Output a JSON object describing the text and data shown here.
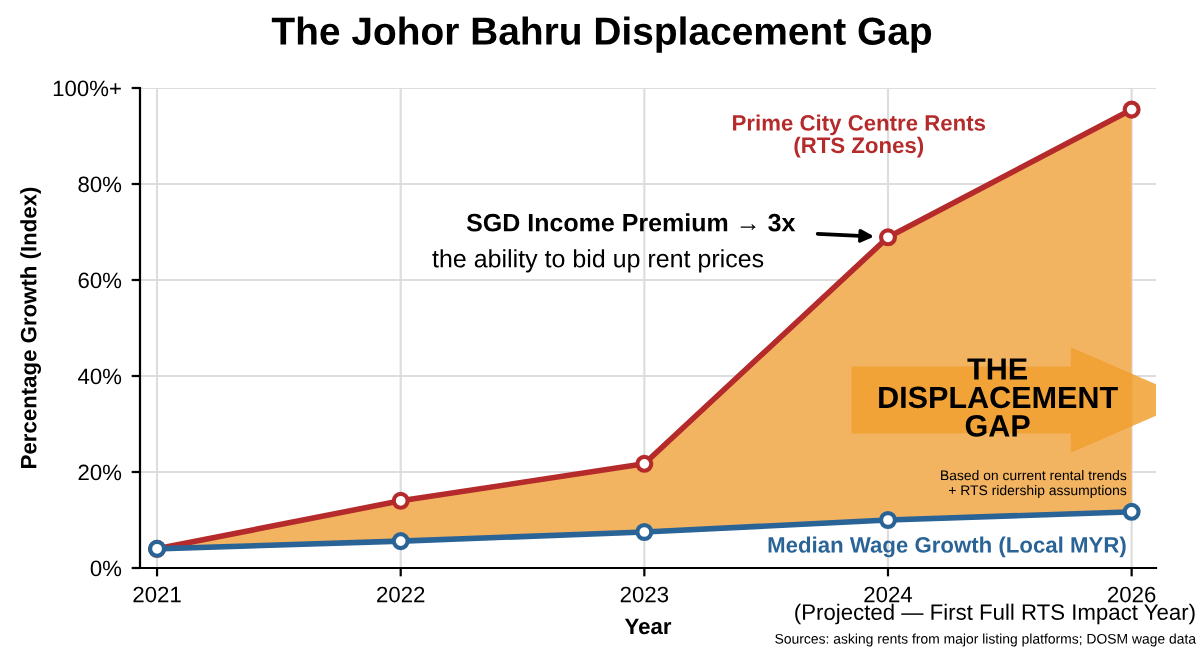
{
  "chart_data": {
    "type": "line",
    "title": "The Johor Bahru Displacement Gap",
    "xlabel": "Year",
    "ylabel": "Percentage Growth (Index)",
    "categories": [
      "2021",
      "2022",
      "2023",
      "2024",
      "2026"
    ],
    "series": [
      {
        "name": "Prime City Centre Rents\n(RTS Zones)",
        "color": "#b52a2a",
        "values": [
          4,
          14,
          21.7,
          68.9,
          95.5
        ],
        "lower": [
          4,
          5.6,
          7.5,
          10,
          11.7
        ],
        "upper": [
          4,
          14,
          21.7,
          68.9,
          95.5
        ]
      },
      {
        "name": "Median Wage Growth (Local MYR)",
        "color": "#2a6496",
        "values": [
          4,
          5.6,
          7.5,
          10,
          11.7
        ]
      }
    ],
    "ylim": [
      0,
      100
    ],
    "yticks": [
      {
        "value": 0,
        "label": "0%"
      },
      {
        "value": 20,
        "label": "20%"
      },
      {
        "value": 40,
        "label": "40%"
      },
      {
        "value": 60,
        "label": "60%"
      },
      {
        "value": 80,
        "label": "80%"
      },
      {
        "value": 100,
        "label": "100%+"
      }
    ],
    "grid": true,
    "legend": false,
    "marker": "circle",
    "line_style": "solid",
    "annotations": [
      {
        "text": "SGD Income Premium → 3x",
        "x": "2024",
        "y": 68.9
      },
      "the ability to bid up rent prices",
      "THE\nDISPLACEMENT\nGAP",
      "Based on current rental trends\n+ RTS ridership assumptions",
      "(Projected — First Full RTS Impact Year)",
      "Sources: asking rents from major listing platforms; DOSM wage data"
    ]
  }
}
